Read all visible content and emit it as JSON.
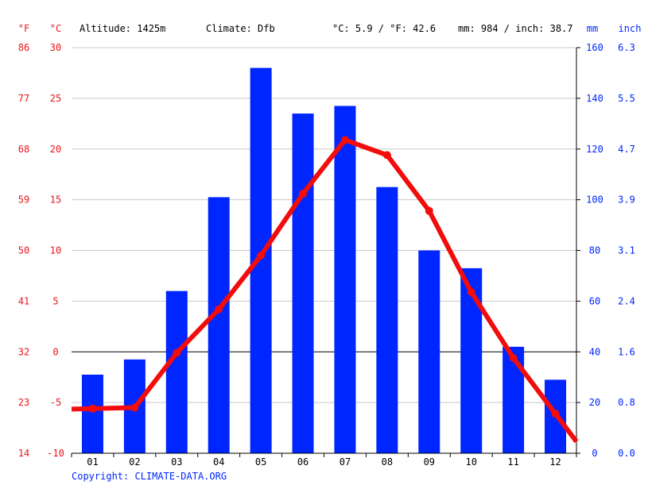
{
  "header": {
    "f_unit": "°F",
    "c_unit": "°C",
    "altitude": "Altitude: 1425m",
    "climate": "Climate: Dfb",
    "avg_temp": "°C: 5.9 / °F: 42.6",
    "precip_total": "mm: 984 / inch: 38.7",
    "mm_unit": "mm",
    "inch_unit": "inch"
  },
  "copyright": "Copyright: CLIMATE-DATA.ORG",
  "colors": {
    "temperature": "#f20c0c",
    "precipitation": "#0026ff",
    "grid": "#c8c8c8",
    "zero_line": "#000000"
  },
  "chart_data": {
    "type": "bar",
    "categories": [
      "01",
      "02",
      "03",
      "04",
      "05",
      "06",
      "07",
      "08",
      "09",
      "10",
      "11",
      "12"
    ],
    "series": [
      {
        "axis": "right",
        "type": "bar",
        "values": [
          31,
          37,
          64,
          101,
          152,
          134,
          137,
          105,
          80,
          73,
          42,
          29
        ]
      },
      {
        "axis": "left",
        "type": "line",
        "values": [
          -5.6,
          -5.5,
          -0.1,
          4.2,
          9.5,
          15.6,
          20.9,
          19.4,
          13.9,
          5.9,
          -0.6,
          -6.1
        ]
      }
    ],
    "left_axis_c": {
      "ticks": [
        "30",
        "25",
        "20",
        "15",
        "10",
        "5",
        "0",
        "-5",
        "-10"
      ],
      "ylim": [
        -10,
        30
      ]
    },
    "left_axis_f": {
      "ticks": [
        "86",
        "77",
        "68",
        "59",
        "50",
        "41",
        "32",
        "23",
        "14"
      ]
    },
    "right_axis_mm": {
      "ticks": [
        "160",
        "140",
        "120",
        "100",
        "80",
        "60",
        "40",
        "20",
        "0"
      ],
      "ylim": [
        0,
        160
      ]
    },
    "right_axis_inch": {
      "ticks": [
        "6.3",
        "5.5",
        "4.7",
        "3.9",
        "3.1",
        "2.4",
        "1.6",
        "0.8",
        "0.0"
      ]
    },
    "grid": true
  }
}
